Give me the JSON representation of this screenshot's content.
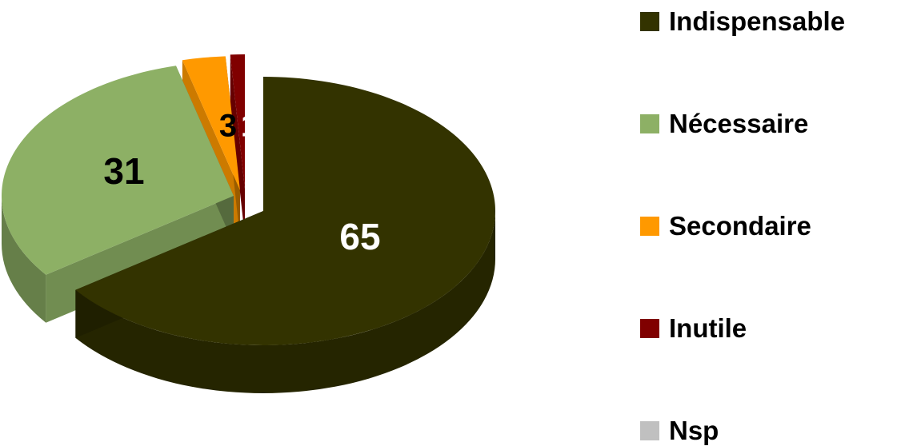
{
  "chart_data": {
    "type": "pie",
    "categories": [
      "Indispensable",
      "Nécessaire",
      "Secondaire",
      "Inutile",
      "Nsp"
    ],
    "values": [
      65,
      31,
      3,
      1,
      0
    ],
    "data_labels": [
      "65",
      "31",
      "3",
      "1",
      ""
    ],
    "colors": [
      "#333300",
      "#8DB065",
      "#FF9900",
      "#800000",
      "#C0C0C0"
    ],
    "label_colors": [
      "#FFFFFF",
      "#000000",
      "#000000",
      "#FFFFFF",
      "#000000"
    ],
    "style": "3d-exploded",
    "legend_position": "right"
  }
}
